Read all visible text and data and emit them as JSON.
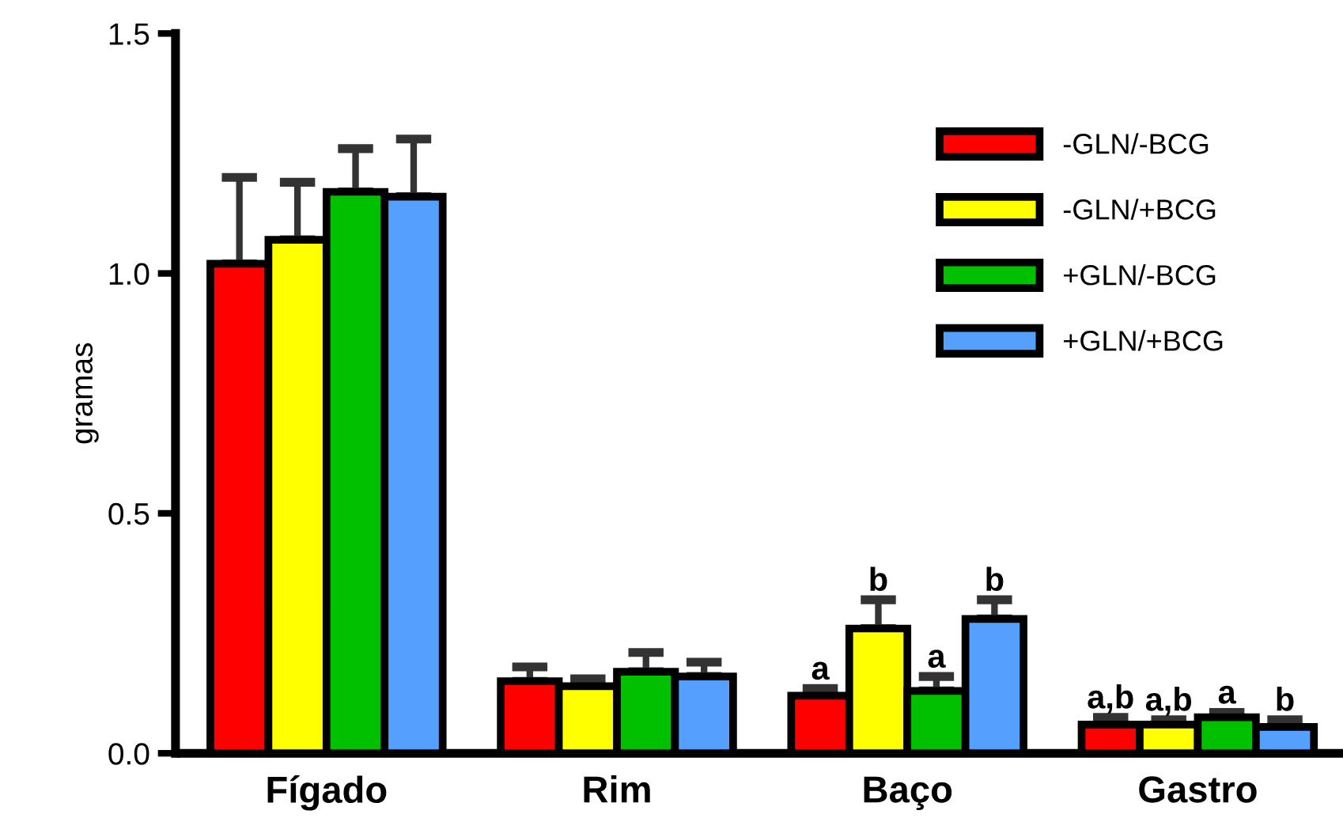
{
  "chart_data": {
    "type": "bar",
    "ylabel": "gramas",
    "categories": [
      "Fígado",
      "Rim",
      "Baço",
      "Gastro"
    ],
    "series": [
      {
        "name": "-GLN/-BCG",
        "color": "#ff0000",
        "values": [
          1.02,
          0.15,
          0.12,
          0.06
        ],
        "errors": [
          [
            1.02,
            1.2
          ],
          [
            0.15,
            0.18
          ],
          [
            0.12,
            0.135
          ],
          [
            0.06,
            0.075
          ]
        ],
        "value_labels": [
          null,
          null,
          "a",
          "a,b"
        ]
      },
      {
        "name": "-GLN/+BCG",
        "color": "#ffff00",
        "values": [
          1.07,
          0.14,
          0.26,
          0.06
        ],
        "errors": [
          [
            1.07,
            1.19
          ],
          [
            0.14,
            0.155
          ],
          [
            0.26,
            0.32
          ],
          [
            0.06,
            0.07
          ]
        ],
        "value_labels": [
          null,
          null,
          "b",
          "a,b"
        ]
      },
      {
        "name": "+GLN/-BCG",
        "color": "#00c000",
        "values": [
          1.17,
          0.17,
          0.13,
          0.075
        ],
        "errors": [
          [
            1.17,
            1.26
          ],
          [
            0.17,
            0.21
          ],
          [
            0.13,
            0.16
          ],
          [
            0.075,
            0.085
          ]
        ],
        "value_labels": [
          null,
          null,
          "a",
          "a"
        ]
      },
      {
        "name": "+GLN/+BCG",
        "color": "#55a0ff",
        "values": [
          1.16,
          0.16,
          0.28,
          0.055
        ],
        "errors": [
          [
            1.16,
            1.28
          ],
          [
            0.16,
            0.19
          ],
          [
            0.28,
            0.32
          ],
          [
            0.055,
            0.07
          ]
        ],
        "value_labels": [
          null,
          null,
          "b",
          "b"
        ]
      }
    ],
    "ylim": [
      0,
      1.5
    ],
    "yticks": [
      {
        "value": 0,
        "label": "0.0"
      },
      0.5,
      {
        "value": 1,
        "label": "1.0"
      },
      1.5
    ],
    "legend": "top right",
    "grid": false
  }
}
